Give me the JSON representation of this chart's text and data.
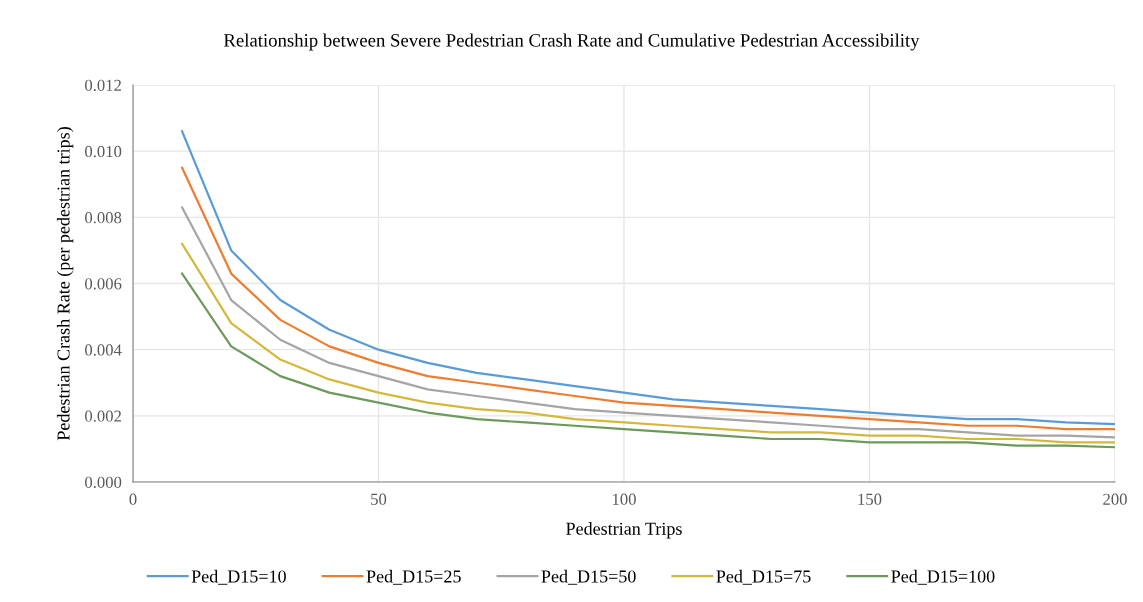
{
  "chart_data": {
    "type": "line",
    "title": "Relationship between Severe Pedestrian Crash Rate and Cumulative Pedestrian Accessibility",
    "xlabel": "Pedestrian Trips",
    "ylabel": "Pedestrian Crash Rate (per pedestrian trips)",
    "x": [
      10,
      20,
      30,
      40,
      50,
      60,
      70,
      80,
      90,
      100,
      110,
      120,
      130,
      140,
      150,
      160,
      170,
      180,
      190,
      200
    ],
    "series": [
      {
        "name": "Ped_D15=10",
        "color": "#5b9bd5",
        "values": [
          0.0106,
          0.007,
          0.0055,
          0.0046,
          0.004,
          0.0036,
          0.0033,
          0.0031,
          0.0029,
          0.0027,
          0.0025,
          0.0024,
          0.0023,
          0.0022,
          0.0021,
          0.002,
          0.0019,
          0.0019,
          0.0018,
          0.00175
        ]
      },
      {
        "name": "Ped_D15=25",
        "color": "#ed7d31",
        "values": [
          0.0095,
          0.0063,
          0.0049,
          0.0041,
          0.0036,
          0.0032,
          0.003,
          0.0028,
          0.0026,
          0.0024,
          0.0023,
          0.0022,
          0.0021,
          0.002,
          0.0019,
          0.0018,
          0.0017,
          0.0017,
          0.0016,
          0.0016
        ]
      },
      {
        "name": "Ped_D15=50",
        "color": "#a5a5a5",
        "values": [
          0.0083,
          0.0055,
          0.0043,
          0.0036,
          0.0032,
          0.0028,
          0.0026,
          0.0024,
          0.0022,
          0.0021,
          0.002,
          0.0019,
          0.0018,
          0.0017,
          0.0016,
          0.0016,
          0.0015,
          0.0014,
          0.0014,
          0.00135
        ]
      },
      {
        "name": "Ped_D15=75",
        "color": "#d4b83a",
        "values": [
          0.0072,
          0.0048,
          0.0037,
          0.0031,
          0.0027,
          0.0024,
          0.0022,
          0.0021,
          0.0019,
          0.0018,
          0.0017,
          0.0016,
          0.0015,
          0.0015,
          0.0014,
          0.0014,
          0.0013,
          0.0013,
          0.0012,
          0.0012
        ]
      },
      {
        "name": "Ped_D15=100",
        "color": "#6b9a5b",
        "values": [
          0.0063,
          0.0041,
          0.0032,
          0.0027,
          0.0024,
          0.0021,
          0.0019,
          0.0018,
          0.0017,
          0.0016,
          0.0015,
          0.0014,
          0.0013,
          0.0013,
          0.0012,
          0.0012,
          0.0012,
          0.0011,
          0.0011,
          0.00105
        ]
      }
    ],
    "xlim": [
      0,
      200
    ],
    "xticks": [
      0,
      50,
      100,
      150,
      200
    ],
    "ylim": [
      0,
      0.012
    ],
    "yticks": [
      {
        "value": 0,
        "label": "0.000"
      },
      {
        "value": 0.002,
        "label": "0.002"
      },
      {
        "value": 0.004,
        "label": "0.004"
      },
      {
        "value": 0.006,
        "label": "0.006"
      },
      {
        "value": 0.008,
        "label": "0.008"
      },
      {
        "value": 0.01,
        "label": "0.010"
      },
      {
        "value": 0.012,
        "label": "0.012"
      }
    ],
    "grid": true,
    "legend": "bottom",
    "marker": "none",
    "line_style": "solid"
  }
}
